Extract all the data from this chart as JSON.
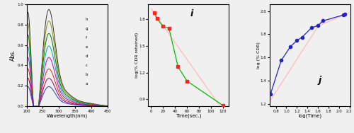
{
  "bg_color": "#f0f0f0",
  "panel_a": {
    "xlabel": "Wavelength(nm)",
    "ylabel": "Abs.",
    "xlim": [
      200,
      450
    ],
    "ylim": [
      0.0,
      1.0
    ],
    "xticks": [
      200,
      250,
      300,
      350,
      400,
      450
    ],
    "yticks": [
      0.0,
      0.2,
      0.4,
      0.6,
      0.8,
      1.0
    ],
    "legend_labels": [
      "h",
      "g",
      "f",
      "e",
      "d",
      "c",
      "b",
      "a"
    ],
    "curves": [
      {
        "color": "#333333",
        "s1": 1.0,
        "s2": 0.93
      },
      {
        "color": "#888800",
        "s1": 0.88,
        "s2": 0.82
      },
      {
        "color": "#007700",
        "s1": 0.76,
        "s2": 0.7
      },
      {
        "color": "#00aaaa",
        "s1": 0.63,
        "s2": 0.58
      },
      {
        "color": "#cc00cc",
        "s1": 0.52,
        "s2": 0.47
      },
      {
        "color": "#cc3300",
        "s1": 0.4,
        "s2": 0.36
      },
      {
        "color": "#990077",
        "s1": 0.3,
        "s2": 0.27
      },
      {
        "color": "#3333cc",
        "s1": 0.21,
        "s2": 0.19
      }
    ]
  },
  "panel_i": {
    "title": "i",
    "xlabel": "Time(sec.)",
    "ylabel": "log(% CDR retained)",
    "xlim": [
      -5,
      130
    ],
    "ylim": [
      0.82,
      1.97
    ],
    "yticks": [
      0.9,
      1.2,
      1.5,
      1.8
    ],
    "xticks": [
      0,
      20,
      40,
      60,
      80,
      100,
      120
    ],
    "data_x": [
      5,
      10,
      20,
      30,
      45,
      60,
      120
    ],
    "data_y": [
      1.875,
      1.805,
      1.72,
      1.695,
      1.265,
      1.105,
      0.83
    ],
    "line_color": "#00bb00",
    "dot_color": "#ff2222",
    "fit_color": "#ffbbbb",
    "fit_x": [
      0,
      128
    ],
    "fit_y": [
      1.92,
      0.7
    ]
  },
  "panel_j": {
    "title": "j",
    "xlabel": "log(Time)",
    "ylabel": "log (% CDR)",
    "xlim": [
      0.68,
      2.22
    ],
    "ylim": [
      1.18,
      2.06
    ],
    "yticks": [
      1.2,
      1.4,
      1.6,
      1.8,
      2.0
    ],
    "xticks": [
      0.8,
      1.0,
      1.2,
      1.4,
      1.6,
      1.8,
      2.0,
      2.2
    ],
    "data_x": [
      0.699,
      0.903,
      1.08,
      1.2,
      1.301,
      1.477,
      1.602,
      1.699,
      2.079,
      2.114
    ],
    "data_y": [
      1.285,
      1.575,
      1.695,
      1.745,
      1.775,
      1.855,
      1.875,
      1.915,
      1.965,
      1.975
    ],
    "line_color": "#2222cc",
    "dot_color": "#2222cc",
    "fit_color": "#ffbbbb",
    "fit1_x": [
      0.68,
      1.7
    ],
    "fit1_y": [
      1.22,
      1.935
    ],
    "fit2_x": [
      1.55,
      2.18
    ],
    "fit2_y": [
      1.862,
      1.98
    ]
  }
}
